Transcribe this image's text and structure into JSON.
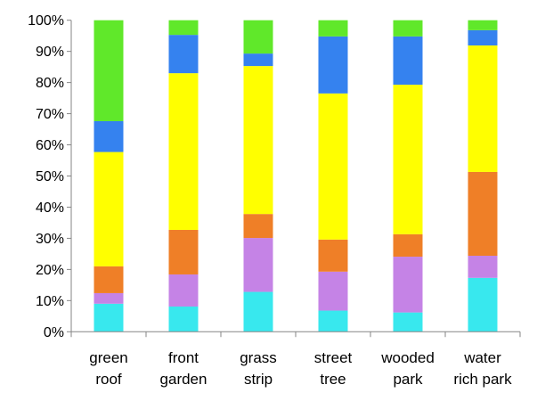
{
  "chart_data": {
    "type": "bar",
    "stacked": true,
    "normalized": true,
    "title": "",
    "xlabel": "",
    "ylabel": "",
    "ylim": [
      0,
      100
    ],
    "yticks": [
      "0%",
      "10%",
      "20%",
      "30%",
      "40%",
      "50%",
      "60%",
      "70%",
      "80%",
      "90%",
      "100%"
    ],
    "grid": false,
    "legend": "none",
    "categories": [
      [
        "green",
        "roof"
      ],
      [
        "front",
        "garden"
      ],
      [
        "grass",
        "strip"
      ],
      [
        "street",
        "tree"
      ],
      [
        "wooded",
        "park"
      ],
      [
        "water",
        "rich park"
      ]
    ],
    "series": [
      {
        "color": "#38e8ee",
        "values": [
          9.0,
          8.1,
          12.8,
          6.8,
          6.2,
          17.3
        ]
      },
      {
        "color": "#c583e6",
        "values": [
          3.4,
          10.3,
          17.3,
          12.5,
          17.9,
          7.1
        ]
      },
      {
        "color": "#ef7f27",
        "values": [
          8.6,
          14.3,
          7.7,
          10.3,
          7.2,
          26.9
        ]
      },
      {
        "color": "#ffff00",
        "values": [
          36.7,
          50.3,
          47.5,
          46.9,
          48.0,
          40.6
        ]
      },
      {
        "color": "#3582ef",
        "values": [
          9.9,
          12.3,
          4.0,
          18.3,
          15.5,
          4.9
        ]
      },
      {
        "color": "#60e82a",
        "values": [
          32.4,
          4.7,
          10.7,
          5.2,
          5.2,
          3.2
        ]
      }
    ]
  }
}
